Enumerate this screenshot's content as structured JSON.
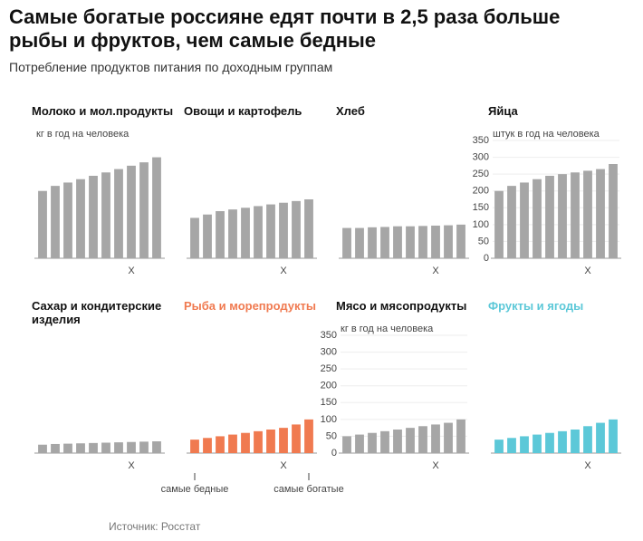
{
  "header": {
    "title": "Самые богатые россияне едят почти в 2,5 раза больше рыбы и фруктов, чем самые бедные",
    "subtitle": "Потребление продуктов питания по доходным группам"
  },
  "chart_data": [
    {
      "type": "bar",
      "title": "Молоко и мол.продукты",
      "unit": "кг в год на человека",
      "xlabel": "X",
      "color": "#a6a6a6",
      "categories": [
        null,
        null,
        null,
        null,
        null,
        null,
        null,
        null,
        null,
        null
      ],
      "values": [
        200,
        215,
        225,
        235,
        245,
        255,
        265,
        275,
        285,
        300
      ],
      "ylim": [
        0,
        350
      ]
    },
    {
      "type": "bar",
      "title": "Овощи и картофель",
      "xlabel": "X",
      "color": "#a6a6a6",
      "categories": [
        null,
        null,
        null,
        null,
        null,
        null,
        null,
        null,
        null,
        null
      ],
      "values": [
        120,
        130,
        140,
        145,
        150,
        155,
        160,
        165,
        170,
        175
      ],
      "ylim": [
        0,
        350
      ]
    },
    {
      "type": "bar",
      "title": "Хлеб",
      "xlabel": "X",
      "color": "#a6a6a6",
      "categories": [
        null,
        null,
        null,
        null,
        null,
        null,
        null,
        null,
        null,
        null
      ],
      "values": [
        90,
        90,
        92,
        93,
        95,
        95,
        96,
        97,
        98,
        100
      ],
      "ylim": [
        0,
        350
      ]
    },
    {
      "type": "bar",
      "title": "Яйца",
      "unit": "штук в год на человека",
      "xlabel": "X",
      "color": "#a6a6a6",
      "categories": [
        null,
        null,
        null,
        null,
        null,
        null,
        null,
        null,
        null,
        null
      ],
      "values": [
        200,
        215,
        225,
        235,
        245,
        250,
        255,
        260,
        265,
        280
      ],
      "ylim": [
        0,
        350
      ],
      "yticks": [
        0,
        50,
        100,
        150,
        200,
        250,
        300,
        350
      ]
    },
    {
      "type": "bar",
      "title": "Сахар и кондитерские изделия",
      "xlabel": "X",
      "color": "#a6a6a6",
      "categories": [
        null,
        null,
        null,
        null,
        null,
        null,
        null,
        null,
        null,
        null
      ],
      "values": [
        25,
        27,
        28,
        29,
        30,
        31,
        32,
        33,
        34,
        35
      ],
      "ylim": [
        0,
        350
      ]
    },
    {
      "type": "bar",
      "title": "Рыба и морепродукты",
      "xlabel": "X",
      "color": "#f07a50",
      "categories": [
        null,
        null,
        null,
        null,
        null,
        null,
        null,
        null,
        null,
        null
      ],
      "values": [
        40,
        45,
        50,
        55,
        60,
        65,
        70,
        75,
        85,
        100
      ],
      "ylim": [
        0,
        350
      ],
      "annotations": [
        "самые бедные",
        "самые богатые"
      ]
    },
    {
      "type": "bar",
      "title": "Мясо и мясопродукты",
      "unit": "кг в год на человека",
      "xlabel": "X",
      "color": "#a6a6a6",
      "categories": [
        null,
        null,
        null,
        null,
        null,
        null,
        null,
        null,
        null,
        null
      ],
      "values": [
        50,
        55,
        60,
        65,
        70,
        75,
        80,
        85,
        90,
        100
      ],
      "ylim": [
        0,
        350
      ],
      "yticks": [
        0,
        50,
        100,
        150,
        200,
        250,
        300,
        350
      ]
    },
    {
      "type": "bar",
      "title": "Фрукты и ягоды",
      "xlabel": "X",
      "color": "#5cc8d8",
      "categories": [
        null,
        null,
        null,
        null,
        null,
        null,
        null,
        null,
        null,
        null
      ],
      "values": [
        40,
        45,
        50,
        55,
        60,
        65,
        70,
        80,
        90,
        100
      ],
      "ylim": [
        0,
        350
      ]
    }
  ],
  "source": "Источник: Росстат"
}
